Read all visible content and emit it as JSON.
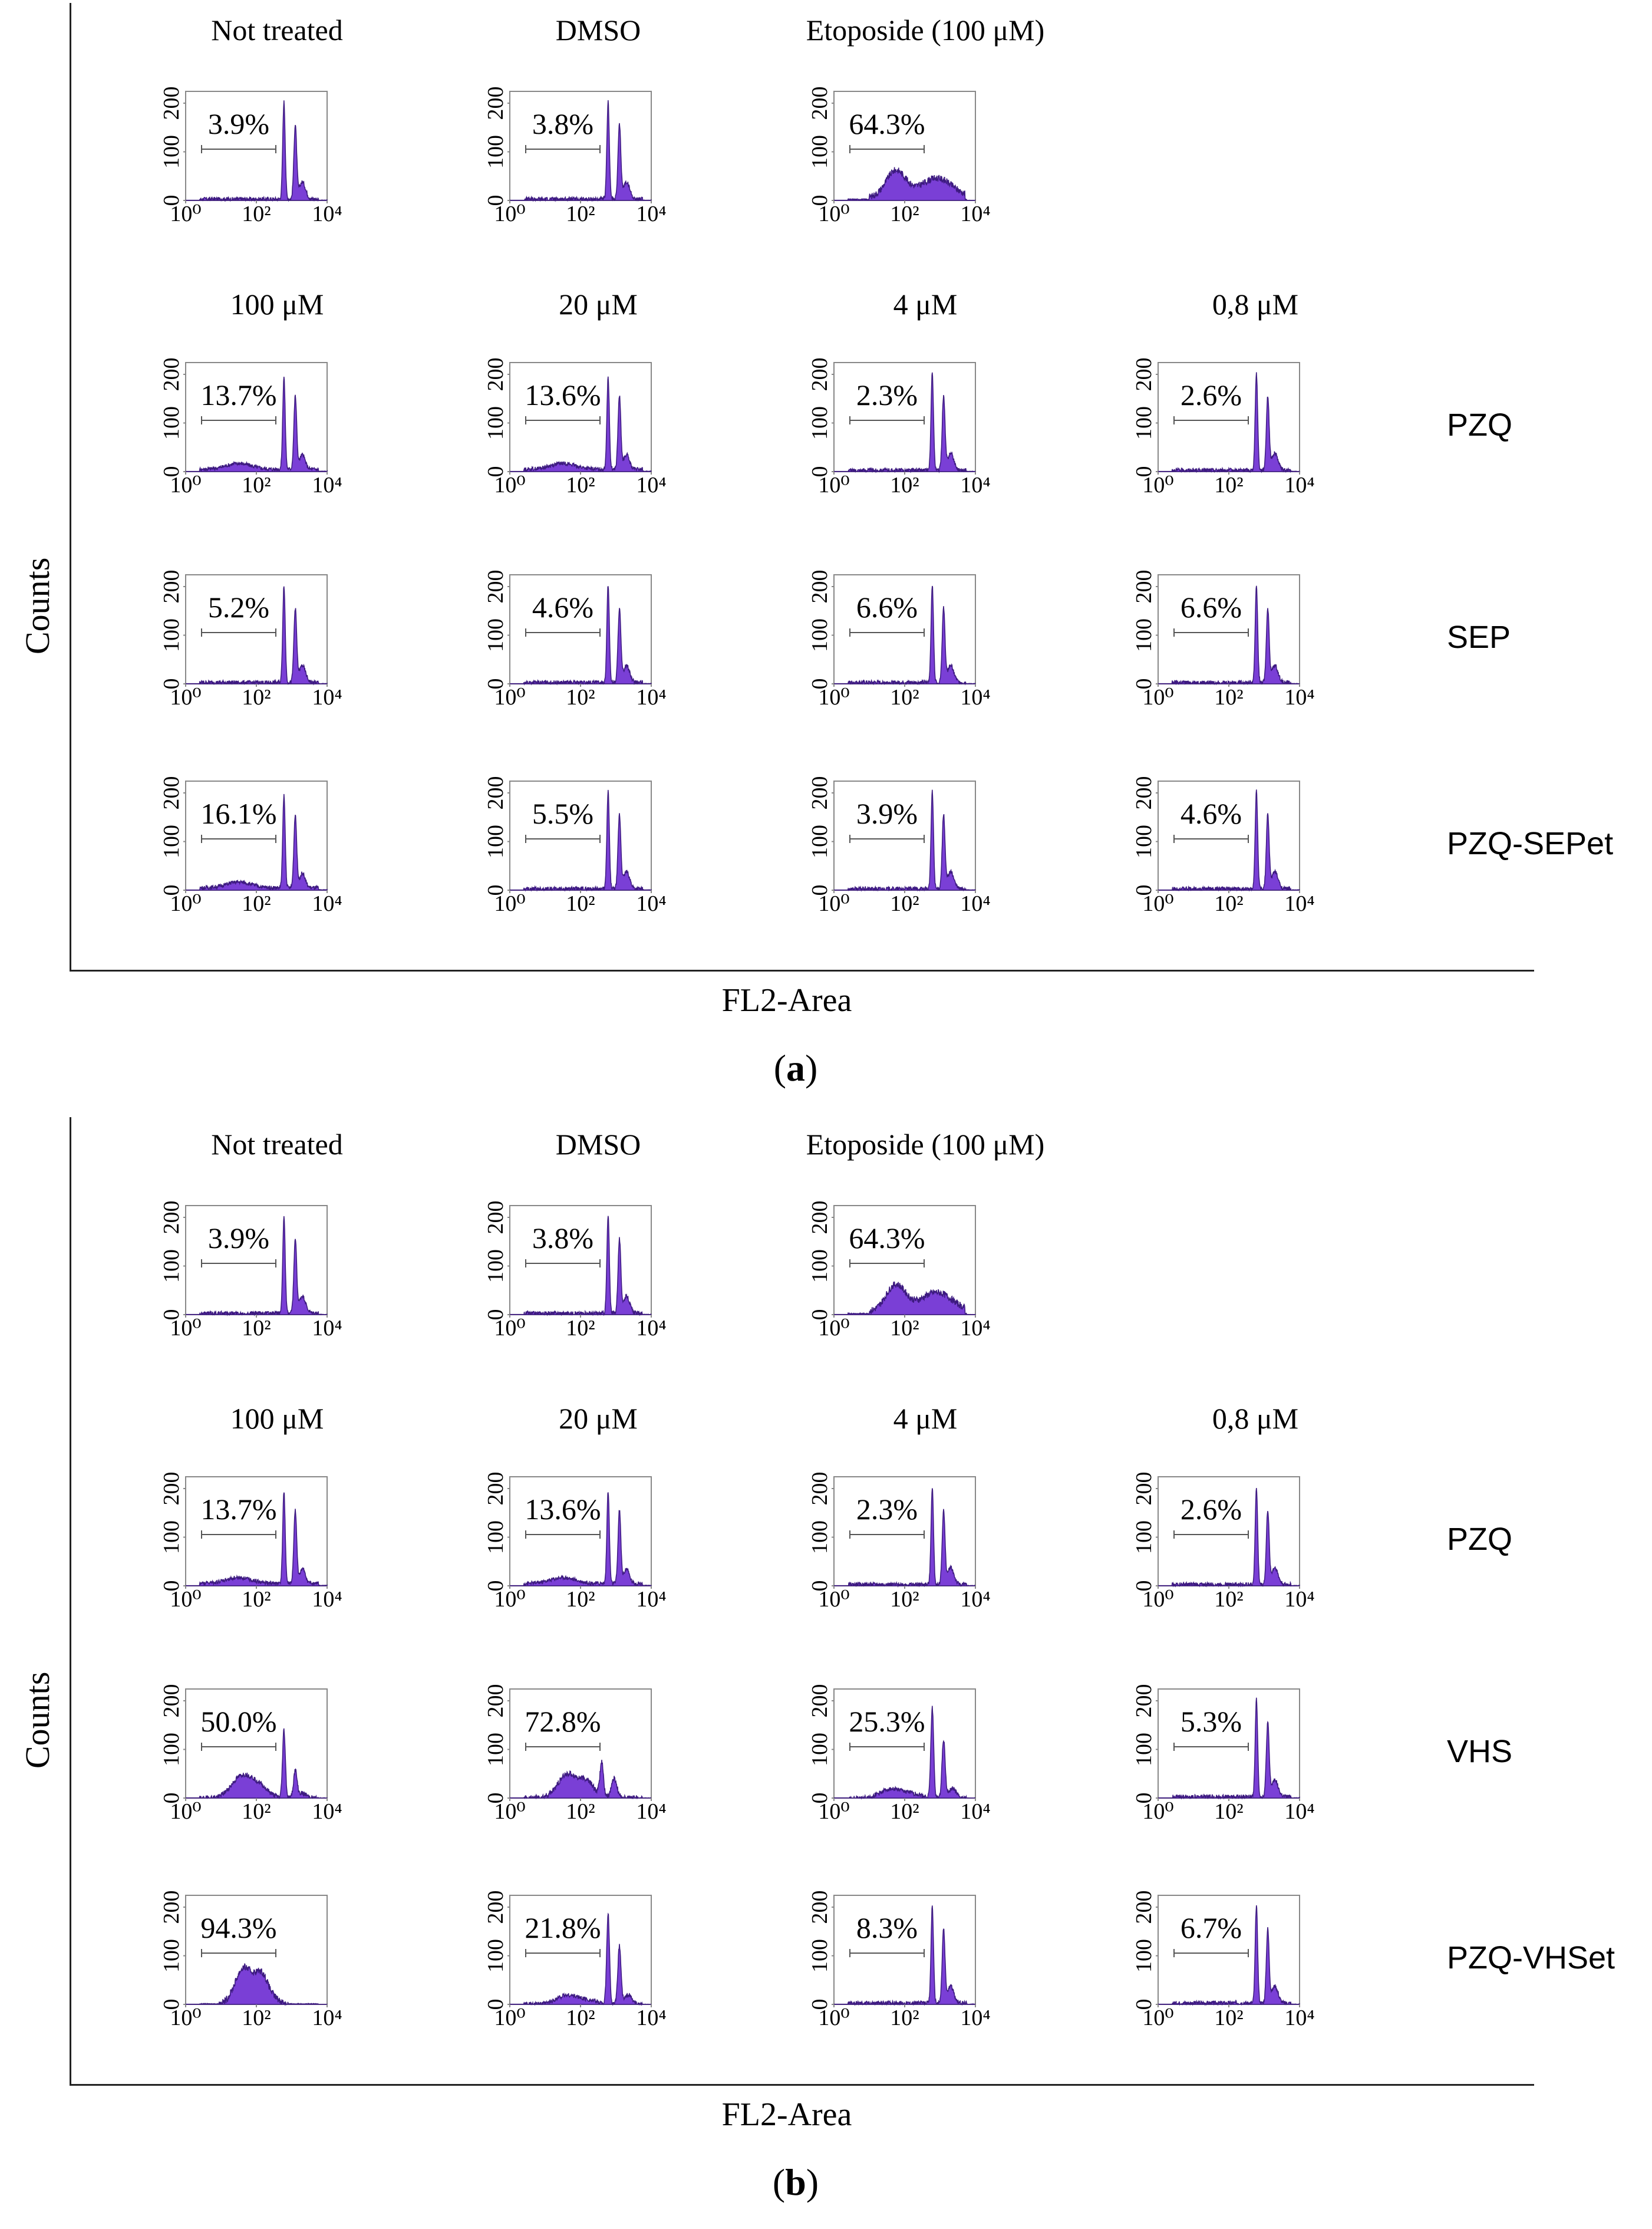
{
  "colors": {
    "histogram_fill": "#7A3FD6",
    "histogram_edge": "#3d1a80",
    "frame": "#888888",
    "gate": "#555555"
  },
  "axis_labels": {
    "x": "FL2-Area",
    "y": "Counts"
  },
  "chart_data": [
    {
      "id": "a",
      "type": "histogram-grid",
      "caption": "(a)",
      "caption_letter": "a",
      "xlabel": "FL2-Area",
      "ylabel": "Counts",
      "x_scale": "log",
      "xlim": [
        1,
        10000
      ],
      "ylim": [
        0,
        200
      ],
      "x_ticks": [
        "10⁰",
        "10²",
        "10⁴"
      ],
      "y_ticks": [
        "0",
        "100",
        "200"
      ],
      "top_row_labels": [
        "Not treated",
        "DMSO",
        "Etoposide (100 μM)"
      ],
      "concentration_labels": [
        "100  μM",
        "20  μM",
        "4  μM",
        "0,8  μM"
      ],
      "rows": [
        {
          "label": "",
          "panels": [
            {
              "gate_percent": "3.9%",
              "profile": "normal"
            },
            {
              "gate_percent": "3.8%",
              "profile": "normal"
            },
            {
              "gate_percent": "64.3%",
              "profile": "etoposide"
            }
          ]
        },
        {
          "label": "PZQ",
          "panels": [
            {
              "gate_percent": "13.7%",
              "profile": "low-subG1"
            },
            {
              "gate_percent": "13.6%",
              "profile": "low-subG1"
            },
            {
              "gate_percent": "2.3%",
              "profile": "normal"
            },
            {
              "gate_percent": "2.6%",
              "profile": "normal"
            }
          ]
        },
        {
          "label": "SEP",
          "panels": [
            {
              "gate_percent": "5.2%",
              "profile": "normal"
            },
            {
              "gate_percent": "4.6%",
              "profile": "normal"
            },
            {
              "gate_percent": "6.6%",
              "profile": "normal"
            },
            {
              "gate_percent": "6.6%",
              "profile": "normal"
            }
          ]
        },
        {
          "label": "PZQ-SEPet",
          "panels": [
            {
              "gate_percent": "16.1%",
              "profile": "low-subG1"
            },
            {
              "gate_percent": "5.5%",
              "profile": "normal"
            },
            {
              "gate_percent": "3.9%",
              "profile": "normal"
            },
            {
              "gate_percent": "4.6%",
              "profile": "normal"
            }
          ]
        }
      ]
    },
    {
      "id": "b",
      "type": "histogram-grid",
      "caption": "(b)",
      "caption_letter": "b",
      "xlabel": "FL2-Area",
      "ylabel": "Counts",
      "x_scale": "log",
      "xlim": [
        1,
        10000
      ],
      "ylim": [
        0,
        200
      ],
      "x_ticks": [
        "10⁰",
        "10²",
        "10⁴"
      ],
      "y_ticks": [
        "0",
        "100",
        "200"
      ],
      "top_row_labels": [
        "Not treated",
        "DMSO",
        "Etoposide (100 μM)"
      ],
      "concentration_labels": [
        "100  μM",
        "20  μM",
        "4  μM",
        "0,8  μM"
      ],
      "rows": [
        {
          "label": "",
          "panels": [
            {
              "gate_percent": "3.9%",
              "profile": "normal"
            },
            {
              "gate_percent": "3.8%",
              "profile": "normal"
            },
            {
              "gate_percent": "64.3%",
              "profile": "etoposide"
            }
          ]
        },
        {
          "label": "PZQ",
          "panels": [
            {
              "gate_percent": "13.7%",
              "profile": "low-subG1"
            },
            {
              "gate_percent": "13.6%",
              "profile": "low-subG1"
            },
            {
              "gate_percent": "2.3%",
              "profile": "normal"
            },
            {
              "gate_percent": "2.6%",
              "profile": "normal"
            }
          ]
        },
        {
          "label": "VHS",
          "panels": [
            {
              "gate_percent": "50.0%",
              "profile": "half-apoptotic"
            },
            {
              "gate_percent": "72.8%",
              "profile": "mostly-apoptotic"
            },
            {
              "gate_percent": "25.3%",
              "profile": "mid-subG1"
            },
            {
              "gate_percent": "5.3%",
              "profile": "normal"
            }
          ]
        },
        {
          "label": "PZQ-VHSet",
          "panels": [
            {
              "gate_percent": "94.3%",
              "profile": "apoptotic"
            },
            {
              "gate_percent": "21.8%",
              "profile": "mid-subG1"
            },
            {
              "gate_percent": "8.3%",
              "profile": "normal"
            },
            {
              "gate_percent": "6.7%",
              "profile": "normal"
            }
          ]
        }
      ]
    }
  ]
}
